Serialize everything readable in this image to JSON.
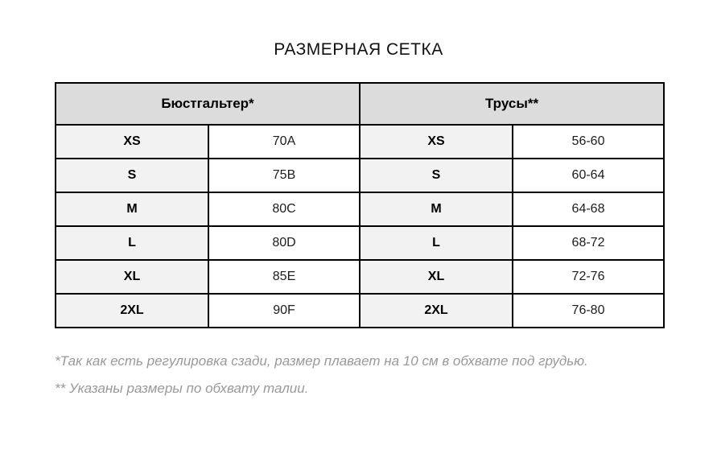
{
  "page": {
    "title": "РАЗМЕРНАЯ СЕТКА"
  },
  "colors": {
    "header_bg": "#dcdcdc",
    "label_cell_bg": "#f2f2f2",
    "border": "#000000",
    "footnote_text": "#999999"
  },
  "table": {
    "headers": {
      "bra": "Бюстгальтер*",
      "panties": "Трусы**"
    },
    "rows": [
      {
        "bra_size": "XS",
        "bra_value": "70A",
        "panty_size": "XS",
        "panty_value": "56-60"
      },
      {
        "bra_size": "S",
        "bra_value": "75B",
        "panty_size": "S",
        "panty_value": "60-64"
      },
      {
        "bra_size": "M",
        "bra_value": "80C",
        "panty_size": "M",
        "panty_value": "64-68"
      },
      {
        "bra_size": "L",
        "bra_value": "80D",
        "panty_size": "L",
        "panty_value": "68-72"
      },
      {
        "bra_size": "XL",
        "bra_value": "85E",
        "panty_size": "XL",
        "panty_value": "72-76"
      },
      {
        "bra_size": "2XL",
        "bra_value": "90F",
        "panty_size": "2XL",
        "panty_value": "76-80"
      }
    ]
  },
  "footnotes": {
    "bra_note": "*Так как есть регулировка сзади, размер плавает на 10 см в обхвате под грудью.",
    "panties_note": "** Указаны размеры по обхвату талии."
  }
}
